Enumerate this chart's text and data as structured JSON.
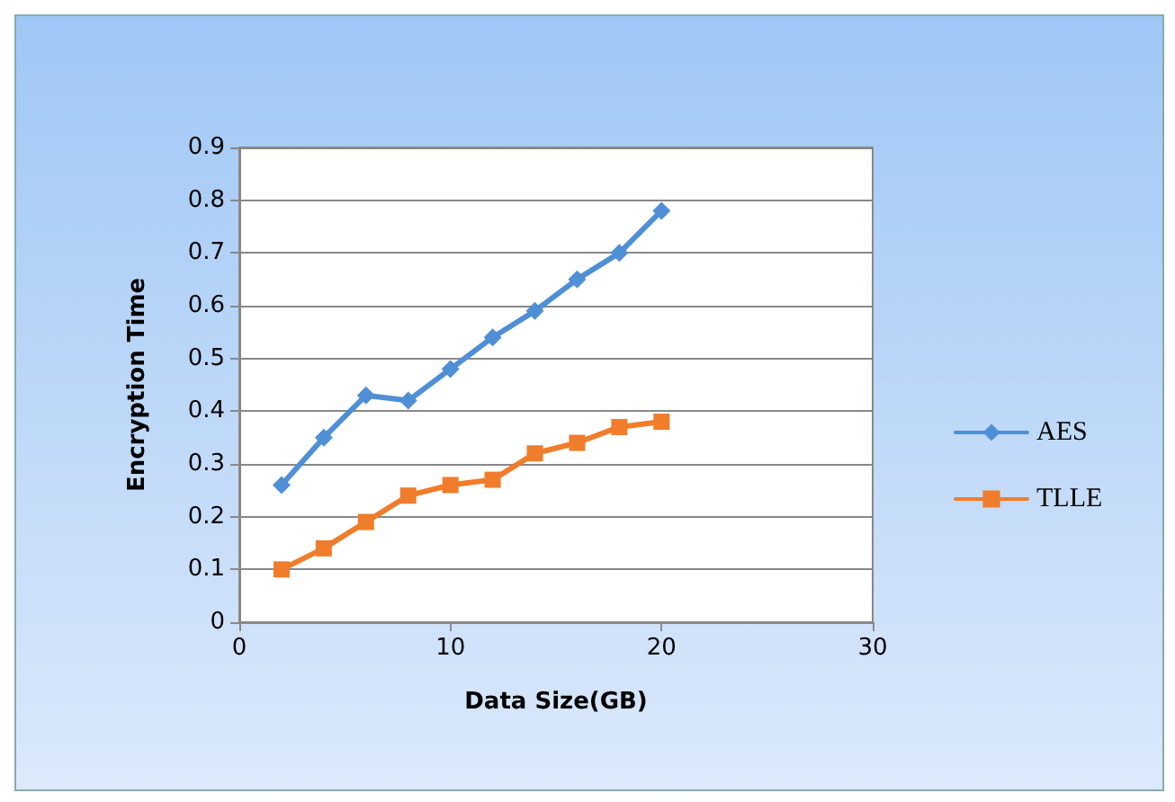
{
  "chart_data": {
    "type": "line",
    "xlabel": "Data Size(GB)",
    "ylabel": "Encryption Time",
    "xlim": [
      0,
      30
    ],
    "xticks": [
      0,
      10,
      20,
      30
    ],
    "ylim": [
      0,
      0.9
    ],
    "yticks": [
      0,
      0.1,
      0.2,
      0.3,
      0.4,
      0.5,
      0.6,
      0.7,
      0.8,
      0.9
    ],
    "grid": "y",
    "legend": "right",
    "line_style": "solid",
    "x": [
      2,
      4,
      6,
      8,
      10,
      12,
      14,
      16,
      18,
      20
    ],
    "series": [
      {
        "name": "AES",
        "color": "#4f8fd6",
        "marker": "diamond",
        "values": [
          0.26,
          0.35,
          0.43,
          0.42,
          0.48,
          0.54,
          0.59,
          0.65,
          0.7,
          0.78
        ]
      },
      {
        "name": "TLLE",
        "color": "#f07d2b",
        "marker": "square",
        "values": [
          0.1,
          0.14,
          0.19,
          0.24,
          0.26,
          0.27,
          0.32,
          0.34,
          0.37,
          0.38
        ]
      }
    ]
  }
}
